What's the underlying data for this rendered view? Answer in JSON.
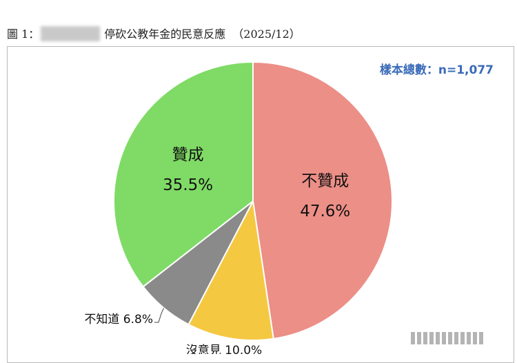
{
  "title": {
    "prefix": "圖 1：",
    "main": "停砍公教年金的民意反應",
    "date": "（2025/12）"
  },
  "sample_label": "樣本總數：n=1,077",
  "chart_data": {
    "type": "pie",
    "slices": [
      {
        "label": "不贊成",
        "value": 47.6,
        "value_label": "47.6%",
        "color": "#ec8f87"
      },
      {
        "label": "沒意見",
        "value": 10.0,
        "value_label": "10.0%",
        "color": "#f5c842"
      },
      {
        "label": "不知道",
        "value": 6.8,
        "value_label": "6.8%",
        "color": "#8a8a8a"
      },
      {
        "label": "贊成",
        "value": 35.5,
        "value_label": "35.5%",
        "color": "#7fdb66"
      }
    ]
  }
}
